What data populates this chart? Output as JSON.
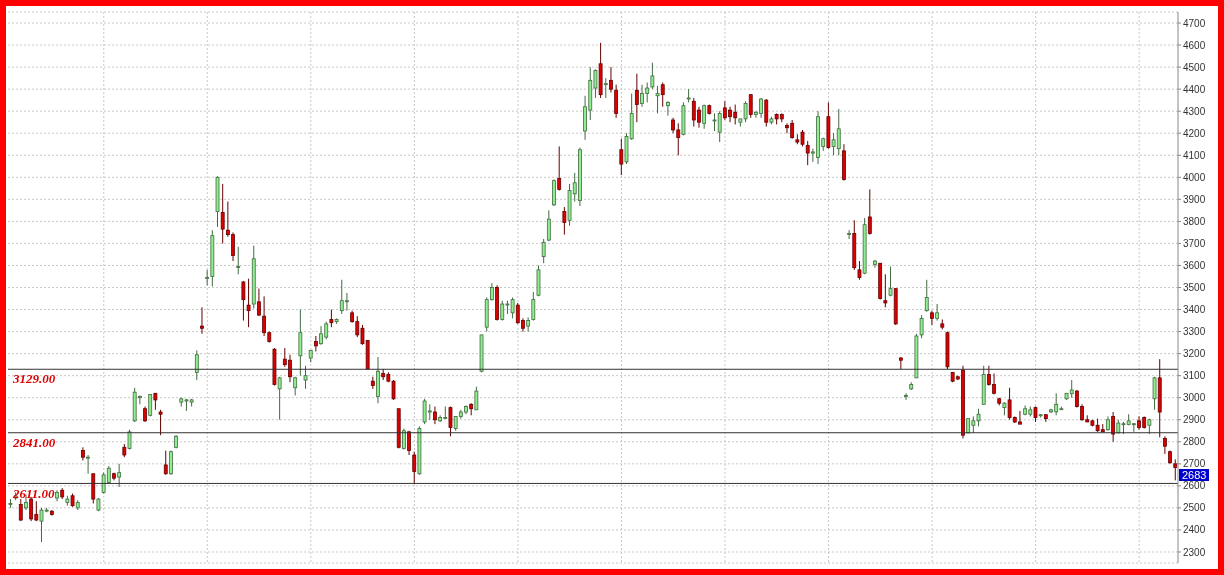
{
  "chart_data": {
    "type": "candlestick",
    "categories": [
      null,
      null,
      null,
      null,
      null,
      null,
      null,
      null,
      null,
      null,
      null,
      null,
      null,
      null,
      null,
      null,
      null,
      null,
      null,
      null,
      null,
      null,
      null,
      null,
      null,
      null,
      null,
      null,
      null,
      null,
      null,
      null,
      null,
      null,
      null,
      null,
      null,
      null,
      null,
      null,
      null,
      null,
      null,
      null,
      null,
      null,
      null,
      null,
      null,
      null,
      null,
      null,
      null,
      null,
      null,
      null,
      null,
      null,
      null,
      null,
      null,
      null,
      null,
      null,
      null,
      null,
      null,
      null,
      null,
      null,
      null,
      null,
      null,
      null,
      null,
      null,
      null,
      null,
      null,
      null,
      null,
      null,
      null,
      null,
      null,
      null,
      null,
      null,
      null,
      null,
      null,
      null,
      null,
      null,
      null,
      null,
      null,
      null,
      null,
      null,
      null,
      null,
      null,
      null,
      null,
      null,
      null,
      null,
      null,
      null,
      null,
      null,
      null,
      null,
      null,
      null,
      null,
      null,
      null,
      null,
      null,
      null,
      null,
      null,
      null,
      null,
      null,
      null,
      null,
      null,
      null,
      null,
      null,
      null,
      null,
      null,
      null,
      null,
      null,
      null,
      null,
      null,
      null,
      null,
      null,
      null,
      null,
      null,
      null,
      null,
      null,
      null,
      null,
      null,
      null,
      null,
      null,
      null,
      null,
      null,
      null,
      null,
      null,
      null,
      null,
      null,
      null,
      null,
      null,
      null,
      null,
      null,
      null,
      null,
      null,
      null,
      null,
      null,
      null,
      null,
      null,
      null,
      null,
      null,
      null,
      null,
      null,
      null,
      null,
      null,
      null,
      null,
      null,
      null,
      null,
      null,
      null,
      null,
      null,
      null,
      null,
      null,
      null,
      null,
      null,
      null,
      null,
      null,
      null,
      null,
      null,
      null,
      null,
      null,
      null,
      null,
      null,
      null,
      null,
      null,
      null,
      null,
      null,
      null,
      null,
      null
    ],
    "ohlc": [
      [
        2515,
        2540,
        2500,
        2520
      ],
      [
        2545,
        2570,
        2535,
        2555
      ],
      [
        2515,
        2540,
        2440,
        2445
      ],
      [
        2500,
        2560,
        2490,
        2525
      ],
      [
        2540,
        2550,
        2440,
        2450
      ],
      [
        2470,
        2530,
        2440,
        2445
      ],
      [
        2440,
        2500,
        2345,
        2490
      ],
      [
        2490,
        2500,
        2480,
        2490
      ],
      [
        2485,
        2490,
        2465,
        2470
      ],
      [
        2545,
        2580,
        2530,
        2570
      ],
      [
        2580,
        2590,
        2540,
        2550
      ],
      [
        2525,
        2555,
        2510,
        2540
      ],
      [
        2555,
        2565,
        2505,
        2510
      ],
      [
        2500,
        2535,
        2490,
        2525
      ],
      [
        2760,
        2775,
        2715,
        2730
      ],
      [
        2730,
        2740,
        2655,
        2730
      ],
      [
        2655,
        2655,
        2520,
        2540
      ],
      [
        2490,
        2545,
        2485,
        2540
      ],
      [
        2570,
        2660,
        2565,
        2650
      ],
      [
        2615,
        2690,
        2610,
        2680
      ],
      [
        2655,
        2660,
        2625,
        2635
      ],
      [
        2640,
        2700,
        2595,
        2660
      ],
      [
        2775,
        2790,
        2730,
        2740
      ],
      [
        2770,
        2855,
        2765,
        2845
      ],
      [
        2895,
        3045,
        2890,
        3025
      ],
      [
        3000,
        3010,
        2970,
        3005
      ],
      [
        2950,
        2960,
        2890,
        2895
      ],
      [
        2920,
        3015,
        2915,
        3015
      ],
      [
        3020,
        3020,
        2945,
        2990
      ],
      [
        2935,
        2945,
        2830,
        2925
      ],
      [
        2695,
        2760,
        2650,
        2655
      ],
      [
        2655,
        2760,
        2650,
        2755
      ],
      [
        2775,
        2830,
        2770,
        2825
      ],
      [
        2980,
        3000,
        2960,
        2995
      ],
      [
        2985,
        2995,
        2940,
        2990
      ],
      [
        2980,
        2995,
        2960,
        2990
      ],
      [
        3115,
        3215,
        3080,
        3195
      ],
      [
        3325,
        3410,
        3290,
        3315
      ],
      [
        3545,
        3580,
        3510,
        3545
      ],
      [
        3550,
        3760,
        3505,
        3735
      ],
      [
        3845,
        4005,
        3775,
        4000
      ],
      [
        3840,
        3970,
        3700,
        3765
      ],
      [
        3760,
        3890,
        3730,
        3740
      ],
      [
        3740,
        3750,
        3620,
        3645
      ],
      [
        3595,
        3685,
        3560,
        3595
      ],
      [
        3525,
        3530,
        3350,
        3445
      ],
      [
        3420,
        3540,
        3320,
        3395
      ],
      [
        3425,
        3690,
        3405,
        3630
      ],
      [
        3435,
        3495,
        3370,
        3375
      ],
      [
        3370,
        3460,
        3280,
        3295
      ],
      [
        3295,
        3300,
        3250,
        3255
      ],
      [
        3220,
        3225,
        3055,
        3060
      ],
      [
        3040,
        3095,
        2900,
        3090
      ],
      [
        3175,
        3225,
        3140,
        3150
      ],
      [
        3170,
        3195,
        3070,
        3095
      ],
      [
        3045,
        3095,
        3010,
        3090
      ],
      [
        3190,
        3400,
        3100,
        3295
      ],
      [
        3080,
        3145,
        3040,
        3100
      ],
      [
        3180,
        3215,
        3160,
        3215
      ],
      [
        3255,
        3280,
        3210,
        3235
      ],
      [
        3245,
        3325,
        3240,
        3290
      ],
      [
        3275,
        3345,
        3265,
        3335
      ],
      [
        3355,
        3400,
        3320,
        3340
      ],
      [
        3345,
        3360,
        3335,
        3355
      ],
      [
        3395,
        3535,
        3380,
        3440
      ],
      [
        3440,
        3475,
        3395,
        3440
      ],
      [
        3385,
        3395,
        3340,
        3345
      ],
      [
        3345,
        3370,
        3275,
        3285
      ],
      [
        3315,
        3330,
        3240,
        3245
      ],
      [
        3260,
        3260,
        3130,
        3130
      ],
      [
        3075,
        3095,
        3040,
        3055
      ],
      [
        3005,
        3185,
        2975,
        3120
      ],
      [
        3110,
        3130,
        3080,
        3095
      ],
      [
        3105,
        3115,
        3070,
        3075
      ],
      [
        3075,
        3080,
        2990,
        2995
      ],
      [
        2950,
        2950,
        2770,
        2775
      ],
      [
        2770,
        2860,
        2765,
        2850
      ],
      [
        2845,
        2850,
        2740,
        2760
      ],
      [
        2740,
        2755,
        2610,
        2665
      ],
      [
        2655,
        2870,
        2650,
        2860
      ],
      [
        2890,
        2995,
        2880,
        2985
      ],
      [
        2935,
        2970,
        2900,
        2940
      ],
      [
        2935,
        2960,
        2880,
        2900
      ],
      [
        2895,
        2920,
        2890,
        2910
      ],
      [
        2910,
        2960,
        2905,
        2910
      ],
      [
        2955,
        2960,
        2825,
        2865
      ],
      [
        2860,
        2915,
        2850,
        2915
      ],
      [
        2915,
        2945,
        2905,
        2935
      ],
      [
        2935,
        2965,
        2925,
        2960
      ],
      [
        2970,
        2975,
        2920,
        2950
      ],
      [
        2945,
        3050,
        2945,
        3030
      ],
      [
        3120,
        3285,
        3115,
        3285
      ],
      [
        3320,
        3455,
        3300,
        3445
      ],
      [
        3445,
        3520,
        3440,
        3500
      ],
      [
        3500,
        3510,
        3350,
        3355
      ],
      [
        3355,
        3440,
        3350,
        3425
      ],
      [
        3425,
        3440,
        3380,
        3425
      ],
      [
        3385,
        3455,
        3360,
        3445
      ],
      [
        3420,
        3430,
        3335,
        3340
      ],
      [
        3350,
        3360,
        3300,
        3315
      ],
      [
        3325,
        3365,
        3300,
        3350
      ],
      [
        3355,
        3480,
        3350,
        3445
      ],
      [
        3465,
        3600,
        3460,
        3580
      ],
      [
        3640,
        3720,
        3610,
        3705
      ],
      [
        3715,
        3850,
        3710,
        3810
      ],
      [
        3875,
        3990,
        3870,
        3985
      ],
      [
        3995,
        4140,
        3940,
        3945
      ],
      [
        3845,
        3865,
        3740,
        3795
      ],
      [
        3805,
        3970,
        3780,
        3940
      ],
      [
        3925,
        4020,
        3890,
        3975
      ],
      [
        3895,
        4135,
        3870,
        4125
      ],
      [
        4210,
        4370,
        4170,
        4320
      ],
      [
        4305,
        4500,
        4260,
        4440
      ],
      [
        4405,
        4490,
        4360,
        4485
      ],
      [
        4515,
        4610,
        4360,
        4375
      ],
      [
        4425,
        4450,
        4360,
        4425
      ],
      [
        4440,
        4500,
        4385,
        4400
      ],
      [
        4395,
        4420,
        4270,
        4290
      ],
      [
        4125,
        4175,
        4010,
        4060
      ],
      [
        4070,
        4200,
        4060,
        4185
      ],
      [
        4175,
        4380,
        4170,
        4290
      ],
      [
        4395,
        4470,
        4250,
        4330
      ],
      [
        4335,
        4420,
        4320,
        4380
      ],
      [
        4380,
        4430,
        4340,
        4405
      ],
      [
        4410,
        4520,
        4400,
        4460
      ],
      [
        4370,
        4415,
        4290,
        4380
      ],
      [
        4420,
        4430,
        4320,
        4375
      ],
      [
        4325,
        4345,
        4280,
        4340
      ],
      [
        4260,
        4270,
        4200,
        4215
      ],
      [
        4215,
        4245,
        4100,
        4180
      ],
      [
        4195,
        4340,
        4190,
        4325
      ],
      [
        4360,
        4400,
        4340,
        4360
      ],
      [
        4345,
        4360,
        4230,
        4260
      ],
      [
        4305,
        4320,
        4225,
        4250
      ],
      [
        4245,
        4330,
        4220,
        4325
      ],
      [
        4325,
        4330,
        4285,
        4290
      ],
      [
        4260,
        4290,
        4210,
        4260
      ],
      [
        4205,
        4300,
        4160,
        4290
      ],
      [
        4315,
        4345,
        4260,
        4270
      ],
      [
        4305,
        4320,
        4250,
        4275
      ],
      [
        4295,
        4330,
        4240,
        4270
      ],
      [
        4250,
        4265,
        4230,
        4265
      ],
      [
        4265,
        4345,
        4250,
        4335
      ],
      [
        4375,
        4375,
        4270,
        4285
      ],
      [
        4285,
        4300,
        4270,
        4295
      ],
      [
        4290,
        4360,
        4270,
        4355
      ],
      [
        4350,
        4355,
        4230,
        4250
      ],
      [
        4250,
        4275,
        4240,
        4265
      ],
      [
        4285,
        4290,
        4240,
        4265
      ],
      [
        4285,
        4290,
        4250,
        4265
      ],
      [
        4235,
        4245,
        4200,
        4225
      ],
      [
        4245,
        4260,
        4175,
        4180
      ],
      [
        4170,
        4195,
        4150,
        4160
      ],
      [
        4205,
        4215,
        4140,
        4150
      ],
      [
        4145,
        4165,
        4055,
        4110
      ],
      [
        4110,
        4130,
        4070,
        4115
      ],
      [
        4090,
        4300,
        4060,
        4275
      ],
      [
        4140,
        4180,
        4120,
        4175
      ],
      [
        4275,
        4340,
        4130,
        4135
      ],
      [
        4140,
        4200,
        4100,
        4170
      ],
      [
        4130,
        4310,
        4100,
        4220
      ],
      [
        4120,
        4150,
        3985,
        3990
      ],
      [
        3745,
        3760,
        3720,
        3745
      ],
      [
        3745,
        3805,
        3580,
        3590
      ],
      [
        3580,
        3620,
        3535,
        3545
      ],
      [
        3565,
        3815,
        3560,
        3785
      ],
      [
        3820,
        3945,
        3740,
        3745
      ],
      [
        3605,
        3625,
        3590,
        3620
      ],
      [
        3610,
        3610,
        3445,
        3450
      ],
      [
        3440,
        3560,
        3410,
        3430
      ],
      [
        3465,
        3595,
        3460,
        3495
      ],
      [
        3495,
        3495,
        3330,
        3335
      ],
      [
        3180,
        3185,
        3130,
        3170
      ],
      [
        3010,
        3020,
        2990,
        3010
      ],
      [
        3040,
        3070,
        3035,
        3060
      ],
      [
        3090,
        3290,
        3090,
        3280
      ],
      [
        3285,
        3375,
        3270,
        3360
      ],
      [
        3395,
        3535,
        3390,
        3455
      ],
      [
        3385,
        3395,
        3330,
        3360
      ],
      [
        3360,
        3425,
        3350,
        3385
      ],
      [
        3335,
        3355,
        3310,
        3320
      ],
      [
        3295,
        3300,
        3130,
        3140
      ],
      [
        3115,
        3115,
        3070,
        3075
      ],
      [
        3095,
        3100,
        3080,
        3085
      ],
      [
        3125,
        3145,
        2815,
        2830
      ],
      [
        2840,
        2905,
        2840,
        2905
      ],
      [
        2875,
        2915,
        2840,
        2895
      ],
      [
        2895,
        2950,
        2870,
        2925
      ],
      [
        2970,
        3145,
        2970,
        3105
      ],
      [
        3105,
        3145,
        3055,
        3060
      ],
      [
        3060,
        3110,
        3015,
        3020
      ],
      [
        2995,
        3000,
        2965,
        2975
      ],
      [
        2955,
        2980,
        2920,
        2975
      ],
      [
        2990,
        3045,
        2900,
        2910
      ],
      [
        2910,
        2915,
        2885,
        2890
      ],
      [
        2890,
        2940,
        2880,
        2880
      ],
      [
        2925,
        2965,
        2920,
        2950
      ],
      [
        2925,
        2960,
        2915,
        2945
      ],
      [
        2955,
        2960,
        2890,
        2910
      ],
      [
        2918,
        2925,
        2910,
        2923
      ],
      [
        2923,
        2925,
        2890,
        2905
      ],
      [
        2936,
        2950,
        2930,
        2945
      ],
      [
        2936,
        3020,
        2920,
        2970
      ],
      [
        2950,
        2960,
        2945,
        2950
      ],
      [
        2995,
        3020,
        2990,
        3020
      ],
      [
        3018,
        3080,
        3000,
        3035
      ],
      [
        3030,
        3035,
        2955,
        2960
      ],
      [
        2960,
        2970,
        2895,
        2900
      ],
      [
        2900,
        2920,
        2890,
        2890
      ],
      [
        2895,
        2900,
        2870,
        2875
      ],
      [
        2875,
        2905,
        2845,
        2850
      ],
      [
        2855,
        2880,
        2845,
        2845
      ],
      [
        2855,
        2915,
        2850,
        2900
      ],
      [
        2915,
        2935,
        2800,
        2835
      ],
      [
        2840,
        2900,
        2840,
        2885
      ],
      [
        2880,
        2890,
        2835,
        2882
      ],
      [
        2878,
        2925,
        2875,
        2895
      ],
      [
        2882,
        2885,
        2845,
        2882
      ],
      [
        2895,
        2915,
        2855,
        2865
      ],
      [
        2910,
        2915,
        2860,
        2865
      ],
      [
        2875,
        2905,
        2835,
        2900
      ],
      [
        2995,
        3095,
        2945,
        3090
      ],
      [
        3090,
        3175,
        2820,
        2935
      ],
      [
        2815,
        2825,
        2745,
        2780
      ],
      [
        2755,
        2760,
        2700,
        2705
      ],
      [
        2700,
        2720,
        2625,
        2683
      ]
    ],
    "colors": [
      "#90ee90",
      "#90ee90",
      "#dd0000",
      "#90ee90",
      "#dd0000",
      "#dd0000",
      "#90ee90",
      "#90ee90",
      "#dd0000",
      "#90ee90",
      "#dd0000",
      "#90ee90",
      "#dd0000",
      "#90ee90",
      "#dd0000",
      "#90ee90",
      "#dd0000",
      "#90ee90",
      "#90ee90",
      "#90ee90",
      "#dd0000",
      "#90ee90",
      "#dd0000",
      "#90ee90",
      "#90ee90",
      "#90ee90",
      "#dd0000",
      "#90ee90",
      "#dd0000",
      "#dd0000",
      "#dd0000",
      "#90ee90",
      "#90ee90",
      "#90ee90",
      "#90ee90",
      "#90ee90",
      "#90ee90",
      "#dd0000",
      "#90ee90",
      "#90ee90",
      "#90ee90",
      "#dd0000",
      "#dd0000",
      "#dd0000",
      "#90ee90",
      "#dd0000",
      "#dd0000",
      "#90ee90",
      "#dd0000",
      "#dd0000",
      "#dd0000",
      "#dd0000",
      "#90ee90",
      "#dd0000",
      "#dd0000",
      "#90ee90",
      "#90ee90",
      "#90ee90",
      "#90ee90",
      "#dd0000",
      "#90ee90",
      "#90ee90",
      "#dd0000",
      "#90ee90",
      "#90ee90",
      "#90ee90",
      "#dd0000",
      "#dd0000",
      "#dd0000",
      "#dd0000",
      "#dd0000",
      "#90ee90",
      "#dd0000",
      "#dd0000",
      "#dd0000",
      "#dd0000",
      "#90ee90",
      "#dd0000",
      "#dd0000",
      "#90ee90",
      "#90ee90",
      "#90ee90",
      "#dd0000",
      "#90ee90",
      "#90ee90",
      "#dd0000",
      "#90ee90",
      "#90ee90",
      "#90ee90",
      "#dd0000",
      "#90ee90",
      "#90ee90",
      "#90ee90",
      "#90ee90",
      "#dd0000",
      "#90ee90",
      "#90ee90",
      "#90ee90",
      "#dd0000",
      "#dd0000",
      "#90ee90",
      "#90ee90",
      "#90ee90",
      "#90ee90",
      "#90ee90",
      "#90ee90",
      "#dd0000",
      "#dd0000",
      "#90ee90",
      "#90ee90",
      "#90ee90",
      "#90ee90",
      "#90ee90",
      "#90ee90",
      "#dd0000",
      "#90ee90",
      "#dd0000",
      "#dd0000",
      "#dd0000",
      "#90ee90",
      "#90ee90",
      "#dd0000",
      "#90ee90",
      "#90ee90",
      "#90ee90",
      "#90ee90",
      "#dd0000",
      "#90ee90",
      "#dd0000",
      "#dd0000",
      "#90ee90",
      "#90ee90",
      "#dd0000",
      "#dd0000",
      "#90ee90",
      "#dd0000",
      "#90ee90",
      "#90ee90",
      "#dd0000",
      "#dd0000",
      "#dd0000",
      "#90ee90",
      "#90ee90",
      "#dd0000",
      "#90ee90",
      "#90ee90",
      "#dd0000",
      "#90ee90",
      "#dd0000",
      "#dd0000",
      "#dd0000",
      "#dd0000",
      "#dd0000",
      "#dd0000",
      "#dd0000",
      "#90ee90",
      "#90ee90",
      "#90ee90",
      "#dd0000",
      "#90ee90",
      "#90ee90",
      "#dd0000",
      "#90ee90",
      "#dd0000",
      "#dd0000",
      "#90ee90",
      "#dd0000",
      "#90ee90",
      "#dd0000",
      "#dd0000",
      "#90ee90",
      "#dd0000",
      "#dd0000",
      "#90ee90",
      "#90ee90",
      "#90ee90",
      "#90ee90",
      "#90ee90",
      "#dd0000",
      "#90ee90",
      "#dd0000",
      "#dd0000",
      "#dd0000",
      "#dd0000",
      "#dd0000",
      "#90ee90",
      "#90ee90",
      "#90ee90",
      "#90ee90",
      "#dd0000",
      "#dd0000",
      "#dd0000",
      "#90ee90",
      "#dd0000",
      "#dd0000",
      "#dd0000",
      "#90ee90",
      "#90ee90",
      "#dd0000",
      "#90ee90",
      "#dd0000",
      "#90ee90",
      "#90ee90",
      "#90ee90",
      "#90ee90",
      "#90ee90",
      "#dd0000",
      "#dd0000",
      "#dd0000",
      "#dd0000",
      "#dd0000",
      "#dd0000",
      "#90ee90",
      "#dd0000",
      "#90ee90",
      "#90ee90",
      "#90ee90",
      "#90ee90",
      "#dd0000",
      "#dd0000",
      "#90ee90",
      "#90ee90",
      "#dd0000",
      "#dd0000",
      "#dd0000",
      "#dd0000"
    ],
    "ylim": [
      2250,
      4750
    ],
    "yticks": [
      2300,
      2400,
      2500,
      2600,
      2700,
      2800,
      2900,
      3000,
      3100,
      3200,
      3300,
      3400,
      3500,
      3600,
      3700,
      3800,
      3900,
      4000,
      4100,
      4200,
      4300,
      4400,
      4500,
      4600,
      4700
    ],
    "tick_labels": "y",
    "grid": true,
    "ref_lines": [
      {
        "axis": "y",
        "value": 3129,
        "label": "3129.00",
        "color": "#333333"
      },
      {
        "axis": "y",
        "value": 2841,
        "label": "2841.00",
        "color": "#333333"
      },
      {
        "axis": "y",
        "value": 2611,
        "label": "2611.00",
        "color": "#333333"
      }
    ],
    "annotations": [
      "2683"
    ]
  }
}
